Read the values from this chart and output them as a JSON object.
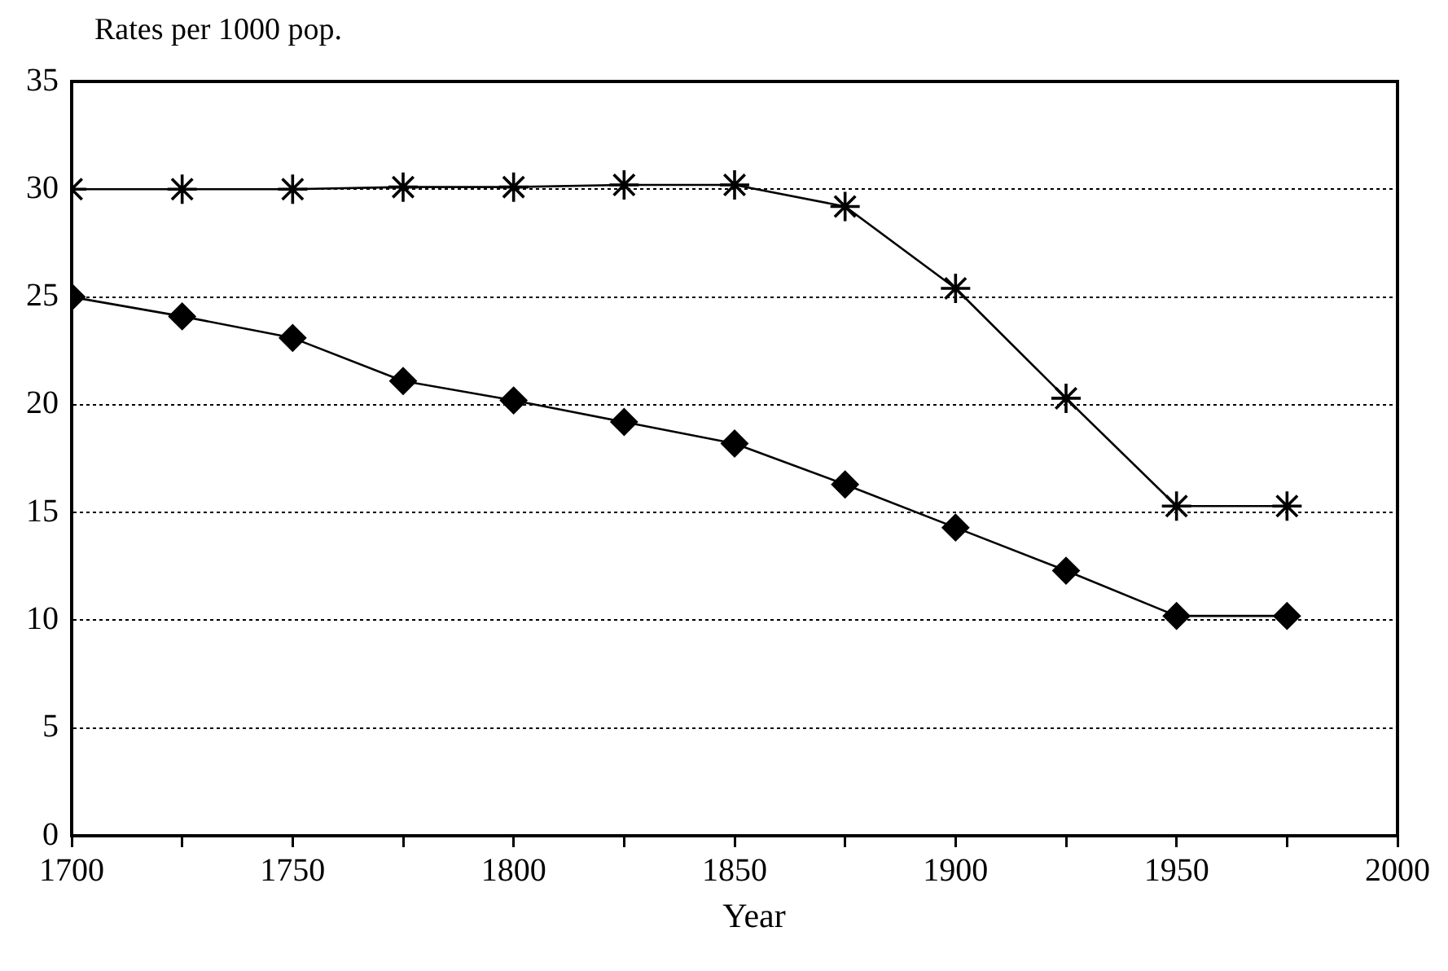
{
  "chart_data": {
    "type": "line",
    "ylabel": "Rates per 1000 pop.",
    "xlabel": "Year",
    "xlim": [
      1700,
      2000
    ],
    "xticks": [
      1700,
      {
        "value": 1725,
        "label": null
      },
      1750,
      {
        "value": 1775,
        "label": null
      },
      1800,
      {
        "value": 1825,
        "label": null
      },
      1850,
      {
        "value": 1875,
        "label": null
      },
      1900,
      {
        "value": 1925,
        "label": null
      },
      1950,
      {
        "value": 1975,
        "label": null
      },
      2000
    ],
    "ylim": [
      0,
      35
    ],
    "yticks": [
      0,
      5,
      10,
      15,
      20,
      25,
      30,
      35
    ],
    "grid": "y",
    "legend": false,
    "line_style": "solid",
    "x": [
      1700,
      1725,
      1750,
      1775,
      1800,
      1825,
      1850,
      1875,
      1900,
      1925,
      1950,
      1975
    ],
    "series": [
      {
        "color": "#000000",
        "marker": "cross",
        "values": [
          30,
          30,
          30,
          30.1,
          30.1,
          30.2,
          30.2,
          29.2,
          25.4,
          20.3,
          15.3,
          15.3
        ]
      },
      {
        "color": "#000000",
        "marker": "diamond",
        "values": [
          25,
          24.1,
          23.1,
          21.1,
          20.2,
          19.2,
          18.2,
          16.3,
          14.3,
          12.3,
          10.2,
          10.2
        ]
      }
    ]
  }
}
